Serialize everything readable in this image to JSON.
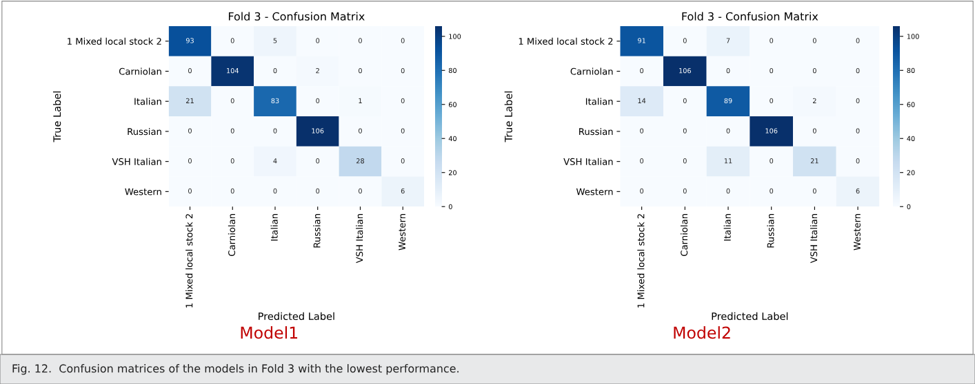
{
  "chart_data": [
    {
      "type": "heatmap",
      "title": "Fold 3 - Confusion Matrix",
      "xlabel": "Predicted Label",
      "ylabel": "True Label",
      "categories": [
        "1 Mixed local stock 2",
        "Carniolan",
        "Italian",
        "Russian",
        "VSH Italian",
        "Western"
      ],
      "y_categories": [
        "1 Mixed local stock 2",
        "Carniolan",
        "Italian",
        "Russian",
        "VSH Italian",
        "Western"
      ],
      "cells": [
        [
          93,
          0,
          5,
          0,
          0,
          0
        ],
        [
          0,
          104,
          0,
          2,
          0,
          0
        ],
        [
          21,
          0,
          83,
          0,
          1,
          0
        ],
        [
          0,
          0,
          0,
          106,
          0,
          0
        ],
        [
          0,
          0,
          4,
          0,
          28,
          0
        ],
        [
          0,
          0,
          0,
          0,
          0,
          6
        ]
      ],
      "clim": [
        0,
        106
      ],
      "cticks": [
        0,
        20,
        40,
        60,
        80,
        100
      ],
      "data_labels": true,
      "annotations": [
        "Model1",
        "Fig. 12.  Confusion matrices of the models in Fold 3 with the lowest performance."
      ]
    },
    {
      "type": "heatmap",
      "title": "Fold 3 - Confusion Matrix",
      "xlabel": "Predicted Label",
      "ylabel": "True Label",
      "categories": [
        "1 Mixed local stock 2",
        "Carniolan",
        "Italian",
        "Russian",
        "VSH Italian",
        "Western"
      ],
      "y_categories": [
        "1 Mixed local stock 2",
        "Carniolan",
        "Italian",
        "Russian",
        "VSH Italian",
        "Western"
      ],
      "cells": [
        [
          91,
          0,
          7,
          0,
          0,
          0
        ],
        [
          0,
          106,
          0,
          0,
          0,
          0
        ],
        [
          14,
          0,
          89,
          0,
          2,
          0
        ],
        [
          0,
          0,
          0,
          106,
          0,
          0
        ],
        [
          0,
          0,
          11,
          0,
          21,
          0
        ],
        [
          0,
          0,
          0,
          0,
          0,
          6
        ]
      ],
      "clim": [
        0,
        106
      ],
      "cticks": [
        0,
        20,
        40,
        60,
        80,
        100
      ],
      "data_labels": true,
      "annotations": [
        "Model2"
      ]
    }
  ]
}
